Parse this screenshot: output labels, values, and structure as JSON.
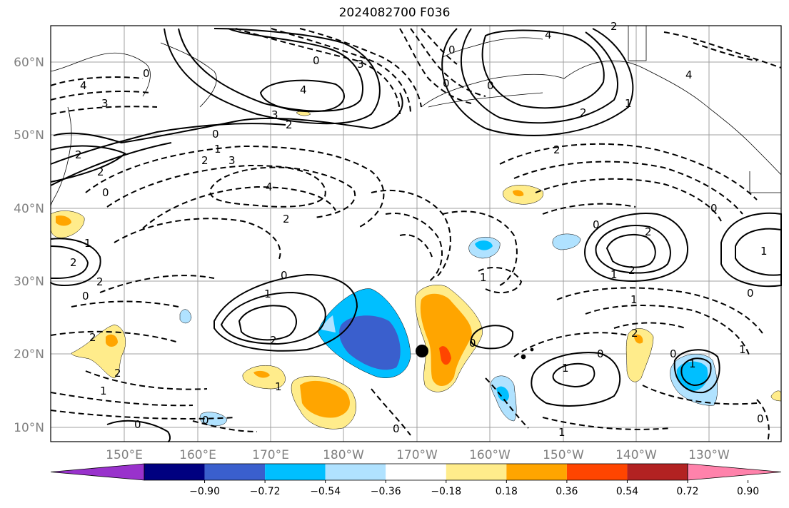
{
  "title": "2024082700 F036",
  "map": {
    "lat_ticks": [
      "60°N",
      "50°N",
      "40°N",
      "30°N",
      "20°N",
      "10°N"
    ],
    "lon_ticks": [
      "150°E",
      "160°E",
      "170°E",
      "180°W",
      "170°W",
      "160°W",
      "150°W",
      "140°W",
      "130°W"
    ],
    "contour_labels": [
      "0",
      "1",
      "2",
      "3",
      "4",
      "-1",
      "-2",
      "-3",
      "-4"
    ],
    "marker": "black-dot"
  },
  "colorbar": {
    "colors": [
      "#9932cc",
      "#000080",
      "#3a5fcd",
      "#00bfff",
      "#b0e2ff",
      "#ffffff",
      "#ffec8b",
      "#ffa500",
      "#ff4500",
      "#b22222",
      "#ff82ab"
    ],
    "labels": [
      "−0.90",
      "−0.72",
      "−0.54",
      "−0.36",
      "−0.18",
      "0.18",
      "0.36",
      "0.54",
      "0.72",
      "0.90"
    ]
  }
}
